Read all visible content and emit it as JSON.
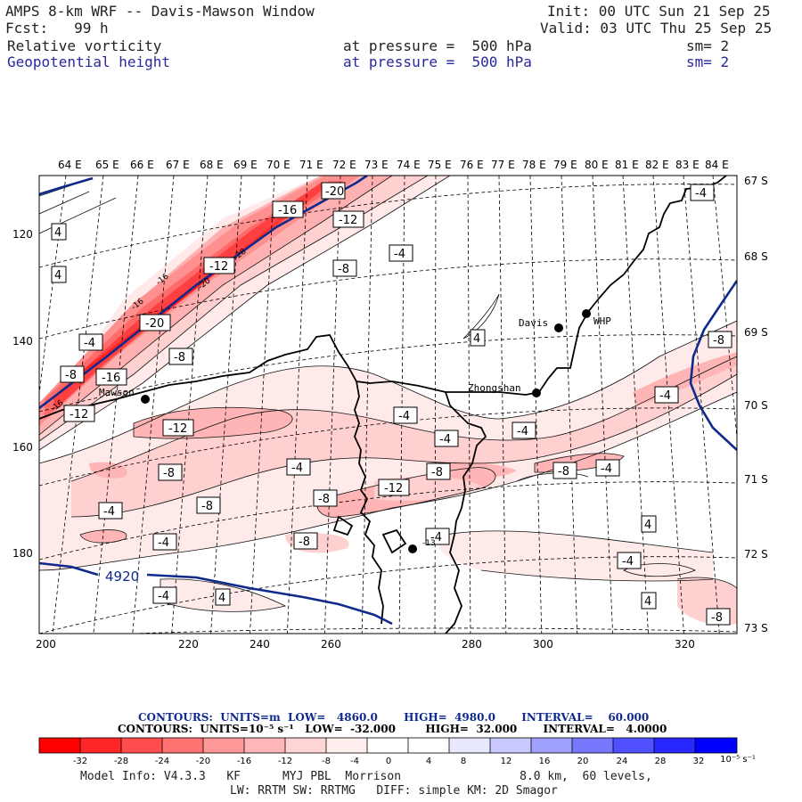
{
  "header": {
    "title": "AMPS 8-km WRF -- Davis-Mawson Window",
    "forecast": "Fcst:   99 h",
    "init": "Init: 00 UTC Sun 21 Sep 25",
    "valid": "Valid: 03 UTC Thu 25 Sep 25",
    "field1_name": "Relative vorticity",
    "field1_level": "at pressure =  500 hPa",
    "field1_smooth": "sm= 2",
    "field2_name": "Geopotential height",
    "field2_level": "at pressure =  500 hPa",
    "field2_smooth": "sm= 2"
  },
  "colors": {
    "contour_blue": "#102a8c",
    "coast": "#000000",
    "frame": "#000000",
    "label_blue": "#2828a0"
  },
  "map": {
    "top_lon_labels": [
      "64 E",
      "65 E",
      "66 E",
      "67 E",
      "68 E",
      "69 E",
      "70 E",
      "71 E",
      "72 E",
      "73 E",
      "74 E",
      "75 E",
      "76 E",
      "77 E",
      "78 E",
      "79 E",
      "80 E",
      "81 E",
      "82 E",
      "83 E",
      "84 E"
    ],
    "right_lat_labels": [
      "67 S",
      "68 S",
      "69 S",
      "70 S",
      "71 S",
      "72 S",
      "73 S"
    ],
    "x_ticks": [
      "200",
      "220",
      "240",
      "260",
      "280",
      "300",
      "320"
    ],
    "y_ticks": [
      "120",
      "140",
      "160",
      "180"
    ],
    "stations": [
      {
        "name": "Davis",
        "icon": "station-dot"
      },
      {
        "name": "WHP",
        "icon": "station-dot"
      },
      {
        "name": "Zhongshan",
        "icon": "station-dot"
      },
      {
        "name": "Mawson",
        "icon": "station-dot"
      },
      {
        "name": "",
        "icon": "station-dot"
      }
    ],
    "height_contour_label": "4920",
    "contour_labels": [
      "-20",
      "-16",
      "-12",
      "-12",
      "-8",
      "-4",
      "4",
      "4",
      "-20",
      "-8",
      "-4",
      "-8",
      "-16",
      "-12",
      "-4",
      "-12",
      "-8",
      "-4",
      "-8",
      "-12",
      "-8",
      "-4",
      "-4",
      "-4",
      "-8",
      "-8",
      "-4",
      "-4",
      "-4",
      "-4",
      "4",
      "-8",
      "-8",
      "-4",
      "4",
      "-4",
      "4",
      "4",
      "-8",
      "-4"
    ],
    "small_labels": [
      "-28",
      "-20",
      "-16",
      "-16",
      "-16",
      "-13"
    ]
  },
  "footer": {
    "height_line": {
      "label": "CONTOURS:  UNITS=m  LOW=   4860.0       HIGH=  4980.0       INTERVAL=    60.000"
    },
    "vort_line": {
      "label": "CONTOURS:  UNITS=10⁻⁵ s⁻¹   LOW=  -32.000        HIGH=  32.000       INTERVAL=   4.0000"
    },
    "colorbar": {
      "ticks": [
        "-32",
        "-28",
        "-24",
        "-20",
        "-16",
        "-12",
        "-8",
        "-4",
        "0",
        "4",
        "8",
        "12",
        "16",
        "20",
        "24",
        "28",
        "32"
      ],
      "units": "10⁻⁵ s⁻¹",
      "colors": [
        "#ff0000",
        "#ff2626",
        "#ff4c4c",
        "#ff7272",
        "#ff9898",
        "#ffb6b6",
        "#ffd4d4",
        "#ffeeee",
        "#ffffff",
        "#ffffff",
        "#e8e8ff",
        "#c8c8ff",
        "#a0a0ff",
        "#7878ff",
        "#5050ff",
        "#2828ff",
        "#0000ff"
      ]
    },
    "model_info": "Model Info: V4.3.3   KF      MYJ PBL  Morrison                 8.0 km,  60 levels,",
    "physics_info": "LW: RRTM SW: RRTMG   DIFF: simple KM: 2D Smagor"
  }
}
